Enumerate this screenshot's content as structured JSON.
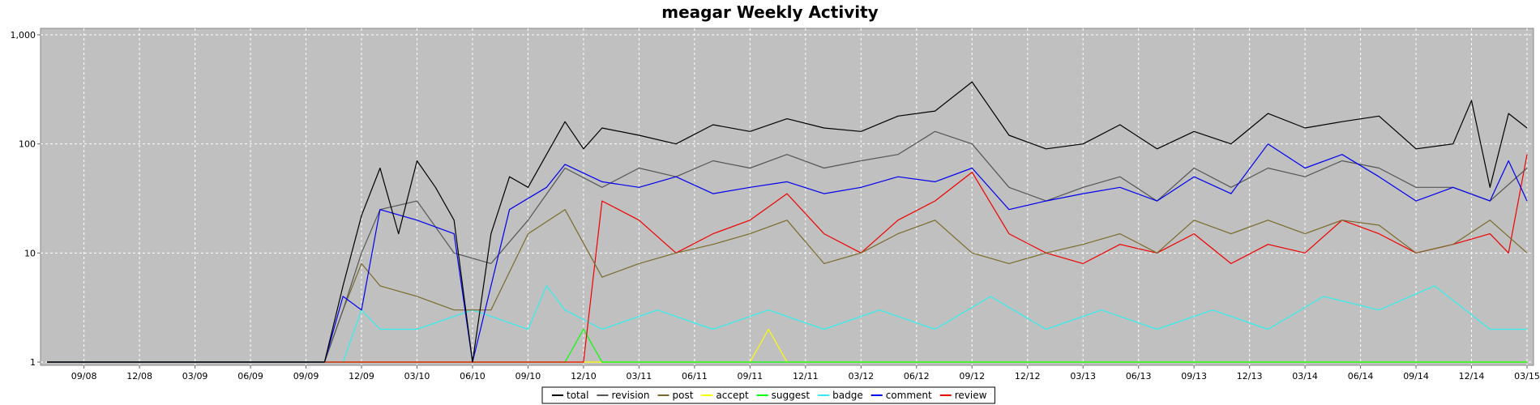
{
  "chart_data": {
    "type": "line",
    "title": "meagar Weekly Activity",
    "xlabel": "",
    "ylabel": "",
    "yscale": "log",
    "ylim": [
      1,
      1000
    ],
    "y_ticks": [
      1,
      10,
      100,
      1000
    ],
    "y_tick_labels": [
      "1",
      "10",
      "100",
      "1,000"
    ],
    "x_ticks": [
      "09/08",
      "12/08",
      "03/09",
      "06/09",
      "09/09",
      "12/09",
      "03/10",
      "06/10",
      "09/10",
      "12/10",
      "03/11",
      "06/11",
      "09/11",
      "12/11",
      "03/12",
      "06/12",
      "09/12",
      "12/12",
      "03/13",
      "06/13",
      "09/13",
      "12/13",
      "03/14",
      "06/14",
      "09/14",
      "12/14",
      "03/15"
    ],
    "x_range": [
      "2008-07",
      "2015-03"
    ],
    "grid": true,
    "legend_position": "bottom-center",
    "series": [
      {
        "name": "total",
        "color": "#000000",
        "points": [
          [
            "2008-07",
            1
          ],
          [
            "2009-10",
            1
          ],
          [
            "2009-11",
            5
          ],
          [
            "2009-12",
            22
          ],
          [
            "2010-01",
            60
          ],
          [
            "2010-02",
            15
          ],
          [
            "2010-03",
            70
          ],
          [
            "2010-04",
            40
          ],
          [
            "2010-05",
            20
          ],
          [
            "2010-06",
            1
          ],
          [
            "2010-07",
            15
          ],
          [
            "2010-08",
            50
          ],
          [
            "2010-09",
            40
          ],
          [
            "2010-10",
            80
          ],
          [
            "2010-11",
            160
          ],
          [
            "2010-12",
            90
          ],
          [
            "2011-01",
            140
          ],
          [
            "2011-03",
            120
          ],
          [
            "2011-05",
            100
          ],
          [
            "2011-07",
            150
          ],
          [
            "2011-09",
            130
          ],
          [
            "2011-11",
            170
          ],
          [
            "2012-01",
            140
          ],
          [
            "2012-03",
            130
          ],
          [
            "2012-05",
            180
          ],
          [
            "2012-07",
            200
          ],
          [
            "2012-09",
            370
          ],
          [
            "2012-11",
            120
          ],
          [
            "2013-01",
            90
          ],
          [
            "2013-03",
            100
          ],
          [
            "2013-05",
            150
          ],
          [
            "2013-07",
            90
          ],
          [
            "2013-09",
            130
          ],
          [
            "2013-11",
            100
          ],
          [
            "2014-01",
            190
          ],
          [
            "2014-03",
            140
          ],
          [
            "2014-05",
            160
          ],
          [
            "2014-07",
            180
          ],
          [
            "2014-09",
            90
          ],
          [
            "2014-11",
            100
          ],
          [
            "2014-12",
            250
          ],
          [
            "2015-01",
            40
          ],
          [
            "2015-02",
            190
          ],
          [
            "2015-03",
            140
          ]
        ]
      },
      {
        "name": "revision",
        "color": "#555555",
        "points": [
          [
            "2008-07",
            1
          ],
          [
            "2009-10",
            1
          ],
          [
            "2009-11",
            3
          ],
          [
            "2009-12",
            10
          ],
          [
            "2010-01",
            25
          ],
          [
            "2010-03",
            30
          ],
          [
            "2010-05",
            10
          ],
          [
            "2010-07",
            8
          ],
          [
            "2010-09",
            20
          ],
          [
            "2010-11",
            60
          ],
          [
            "2011-01",
            40
          ],
          [
            "2011-03",
            60
          ],
          [
            "2011-05",
            50
          ],
          [
            "2011-07",
            70
          ],
          [
            "2011-09",
            60
          ],
          [
            "2011-11",
            80
          ],
          [
            "2012-01",
            60
          ],
          [
            "2012-03",
            70
          ],
          [
            "2012-05",
            80
          ],
          [
            "2012-07",
            130
          ],
          [
            "2012-09",
            100
          ],
          [
            "2012-11",
            40
          ],
          [
            "2013-01",
            30
          ],
          [
            "2013-03",
            40
          ],
          [
            "2013-05",
            50
          ],
          [
            "2013-07",
            30
          ],
          [
            "2013-09",
            60
          ],
          [
            "2013-11",
            40
          ],
          [
            "2014-01",
            60
          ],
          [
            "2014-03",
            50
          ],
          [
            "2014-05",
            70
          ],
          [
            "2014-07",
            60
          ],
          [
            "2014-09",
            40
          ],
          [
            "2014-11",
            40
          ],
          [
            "2015-01",
            30
          ],
          [
            "2015-03",
            60
          ]
        ]
      },
      {
        "name": "post",
        "color": "#7a6a2a",
        "points": [
          [
            "2008-07",
            1
          ],
          [
            "2009-10",
            1
          ],
          [
            "2009-11",
            3
          ],
          [
            "2009-12",
            8
          ],
          [
            "2010-01",
            5
          ],
          [
            "2010-03",
            4
          ],
          [
            "2010-05",
            3
          ],
          [
            "2010-07",
            3
          ],
          [
            "2010-09",
            15
          ],
          [
            "2010-11",
            25
          ],
          [
            "2011-01",
            6
          ],
          [
            "2011-03",
            8
          ],
          [
            "2011-05",
            10
          ],
          [
            "2011-07",
            12
          ],
          [
            "2011-09",
            15
          ],
          [
            "2011-11",
            20
          ],
          [
            "2012-01",
            8
          ],
          [
            "2012-03",
            10
          ],
          [
            "2012-05",
            15
          ],
          [
            "2012-07",
            20
          ],
          [
            "2012-09",
            10
          ],
          [
            "2012-11",
            8
          ],
          [
            "2013-01",
            10
          ],
          [
            "2013-03",
            12
          ],
          [
            "2013-05",
            15
          ],
          [
            "2013-07",
            10
          ],
          [
            "2013-09",
            20
          ],
          [
            "2013-11",
            15
          ],
          [
            "2014-01",
            20
          ],
          [
            "2014-03",
            15
          ],
          [
            "2014-05",
            20
          ],
          [
            "2014-07",
            18
          ],
          [
            "2014-09",
            10
          ],
          [
            "2014-11",
            12
          ],
          [
            "2015-01",
            20
          ],
          [
            "2015-03",
            10
          ]
        ]
      },
      {
        "name": "accept",
        "color": "#ffff00",
        "points": [
          [
            "2008-07",
            1
          ],
          [
            "2011-09",
            1
          ],
          [
            "2011-10",
            2
          ],
          [
            "2011-11",
            1
          ],
          [
            "2015-03",
            1
          ]
        ]
      },
      {
        "name": "suggest",
        "color": "#00ff00",
        "points": [
          [
            "2008-07",
            1
          ],
          [
            "2010-11",
            1
          ],
          [
            "2010-12",
            2
          ],
          [
            "2011-01",
            1
          ],
          [
            "2015-03",
            1
          ]
        ]
      },
      {
        "name": "badge",
        "color": "#33eeee",
        "points": [
          [
            "2008-07",
            1
          ],
          [
            "2009-11",
            1
          ],
          [
            "2009-12",
            3
          ],
          [
            "2010-01",
            2
          ],
          [
            "2010-03",
            2
          ],
          [
            "2010-06",
            3
          ],
          [
            "2010-09",
            2
          ],
          [
            "2010-10",
            5
          ],
          [
            "2010-11",
            3
          ],
          [
            "2011-01",
            2
          ],
          [
            "2011-04",
            3
          ],
          [
            "2011-07",
            2
          ],
          [
            "2011-10",
            3
          ],
          [
            "2012-01",
            2
          ],
          [
            "2012-04",
            3
          ],
          [
            "2012-07",
            2
          ],
          [
            "2012-10",
            4
          ],
          [
            "2013-01",
            2
          ],
          [
            "2013-04",
            3
          ],
          [
            "2013-07",
            2
          ],
          [
            "2013-10",
            3
          ],
          [
            "2014-01",
            2
          ],
          [
            "2014-04",
            4
          ],
          [
            "2014-07",
            3
          ],
          [
            "2014-10",
            5
          ],
          [
            "2015-01",
            2
          ],
          [
            "2015-03",
            2
          ]
        ]
      },
      {
        "name": "comment",
        "color": "#0000ee",
        "points": [
          [
            "2008-07",
            1
          ],
          [
            "2009-10",
            1
          ],
          [
            "2009-11",
            4
          ],
          [
            "2009-12",
            3
          ],
          [
            "2010-01",
            25
          ],
          [
            "2010-03",
            20
          ],
          [
            "2010-05",
            15
          ],
          [
            "2010-06",
            1
          ],
          [
            "2010-08",
            25
          ],
          [
            "2010-10",
            40
          ],
          [
            "2010-11",
            65
          ],
          [
            "2011-01",
            45
          ],
          [
            "2011-03",
            40
          ],
          [
            "2011-05",
            50
          ],
          [
            "2011-07",
            35
          ],
          [
            "2011-09",
            40
          ],
          [
            "2011-11",
            45
          ],
          [
            "2012-01",
            35
          ],
          [
            "2012-03",
            40
          ],
          [
            "2012-05",
            50
          ],
          [
            "2012-07",
            45
          ],
          [
            "2012-09",
            60
          ],
          [
            "2012-11",
            25
          ],
          [
            "2013-01",
            30
          ],
          [
            "2013-03",
            35
          ],
          [
            "2013-05",
            40
          ],
          [
            "2013-07",
            30
          ],
          [
            "2013-09",
            50
          ],
          [
            "2013-11",
            35
          ],
          [
            "2014-01",
            100
          ],
          [
            "2014-03",
            60
          ],
          [
            "2014-05",
            80
          ],
          [
            "2014-07",
            50
          ],
          [
            "2014-09",
            30
          ],
          [
            "2014-11",
            40
          ],
          [
            "2015-01",
            30
          ],
          [
            "2015-02",
            70
          ],
          [
            "2015-03",
            30
          ]
        ]
      },
      {
        "name": "review",
        "color": "#ee0000",
        "points": [
          [
            "2008-07",
            1
          ],
          [
            "2010-12",
            1
          ],
          [
            "2011-01",
            30
          ],
          [
            "2011-03",
            20
          ],
          [
            "2011-05",
            10
          ],
          [
            "2011-07",
            15
          ],
          [
            "2011-09",
            20
          ],
          [
            "2011-11",
            35
          ],
          [
            "2012-01",
            15
          ],
          [
            "2012-03",
            10
          ],
          [
            "2012-05",
            20
          ],
          [
            "2012-07",
            30
          ],
          [
            "2012-09",
            55
          ],
          [
            "2012-11",
            15
          ],
          [
            "2013-01",
            10
          ],
          [
            "2013-03",
            8
          ],
          [
            "2013-05",
            12
          ],
          [
            "2013-07",
            10
          ],
          [
            "2013-09",
            15
          ],
          [
            "2013-11",
            8
          ],
          [
            "2014-01",
            12
          ],
          [
            "2014-03",
            10
          ],
          [
            "2014-05",
            20
          ],
          [
            "2014-07",
            15
          ],
          [
            "2014-09",
            10
          ],
          [
            "2014-11",
            12
          ],
          [
            "2015-01",
            15
          ],
          [
            "2015-02",
            10
          ],
          [
            "2015-03",
            80
          ]
        ]
      }
    ]
  }
}
